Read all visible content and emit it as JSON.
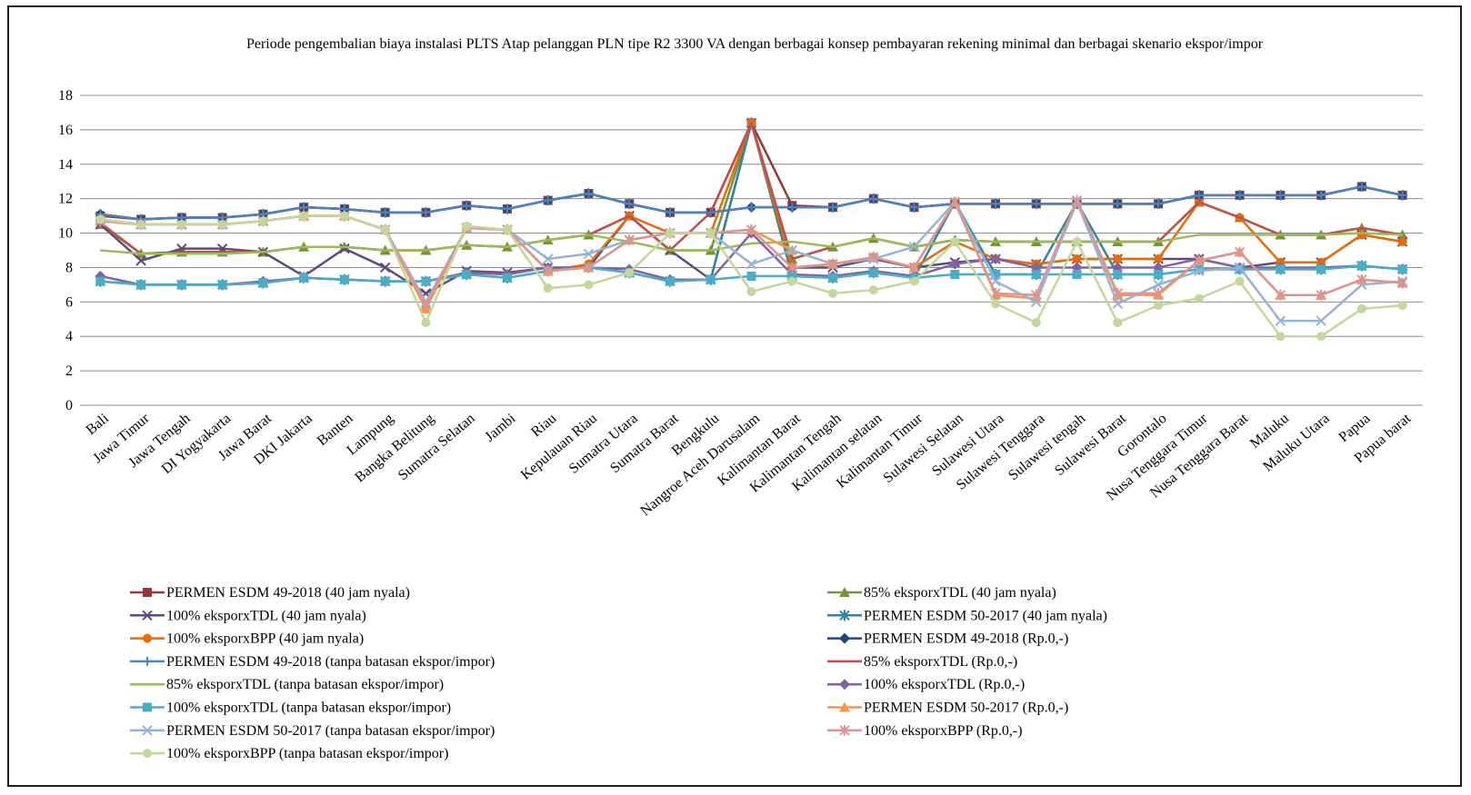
{
  "chart_data": {
    "type": "line",
    "title": "Periode pengembalian biaya instalasi PLTS Atap pelanggan PLN tipe R2 3300 VA dengan berbagai konsep pembayaran rekening minimal dan berbagai skenario ekspor/impor",
    "categories": [
      "Bali",
      "Jawa Timur",
      "Jawa Tengah",
      "DI Yogyakarta",
      "Jawa Barat",
      "DKI Jakarta",
      "Banten",
      "Lampung",
      "Bangka Belitung",
      "Sumatra Selatan",
      "Jambi",
      "Riau",
      "Kepulauan Riau",
      "Sumatra Utara",
      "Sumatra Barat",
      "Bengkulu",
      "Nangroe Aceh Darusalam",
      "Kalimantan Barat",
      "Kalimantan Tengah",
      "Kalimantan selatan",
      "Kalimantan Timur",
      "Sulawesi Selatan",
      "Sulawesi Utara",
      "Sulawesi Tenggara",
      "Sulawesi tengah",
      "Sulawesi Barat",
      "Gorontalo",
      "Nusa Tenggara Timur",
      "Nusa Tenggara Barat",
      "Maluku",
      "Maluku Utara",
      "Papua",
      "Papua barat"
    ],
    "ylim": [
      0,
      18
    ],
    "yticks": [
      0,
      2,
      4,
      6,
      8,
      10,
      12,
      14,
      16,
      18
    ],
    "grid": true,
    "series": [
      {
        "name": "PERMEN ESDM 49-2018 (40 jam nyala)",
        "color": "#953735",
        "marker": "square",
        "values": [
          11.0,
          10.8,
          10.9,
          10.9,
          11.1,
          11.5,
          11.4,
          11.2,
          11.2,
          11.6,
          11.4,
          11.9,
          12.3,
          11.7,
          11.2,
          11.2,
          16.4,
          11.6,
          11.5,
          12.0,
          11.5,
          11.7,
          11.7,
          11.7,
          11.7,
          11.7,
          11.7,
          12.2,
          12.2,
          12.2,
          12.2,
          12.7,
          12.2
        ]
      },
      {
        "name": "85% eksporxTDL (40 jam nyala)",
        "color": "#77933c",
        "marker": "triangle",
        "values": [
          10.5,
          8.8,
          8.9,
          8.9,
          8.9,
          9.2,
          9.2,
          9.0,
          9.0,
          9.3,
          9.2,
          9.6,
          9.9,
          11.0,
          9.0,
          9.0,
          16.4,
          8.5,
          9.2,
          9.7,
          9.2,
          9.6,
          9.5,
          9.5,
          9.5,
          9.5,
          9.5,
          11.8,
          10.9,
          9.9,
          9.9,
          10.3,
          9.9
        ]
      },
      {
        "name": "100% eksporxTDL (40 jam nyala)",
        "color": "#604a7b",
        "marker": "x",
        "values": [
          10.5,
          8.4,
          9.1,
          9.1,
          8.9,
          7.5,
          9.1,
          8.0,
          6.5,
          7.8,
          7.7,
          8.0,
          8.0,
          11.0,
          9.0,
          7.3,
          16.4,
          8.0,
          8.0,
          8.5,
          8.0,
          8.3,
          8.5,
          8.2,
          8.5,
          8.5,
          8.5,
          8.5,
          8.0,
          8.3,
          8.3,
          9.9,
          9.5
        ]
      },
      {
        "name": "PERMEN ESDM 50-2017 (40 jam nyala)",
        "color": "#31859c",
        "marker": "star",
        "values": [
          7.2,
          7.0,
          7.0,
          7.0,
          7.1,
          7.4,
          7.3,
          7.2,
          7.2,
          7.6,
          7.4,
          7.8,
          8.0,
          7.7,
          7.2,
          7.3,
          16.4,
          7.5,
          7.4,
          7.7,
          7.4,
          11.8,
          7.6,
          7.6,
          11.8,
          7.6,
          7.6,
          7.9,
          7.9,
          7.9,
          7.9,
          8.1,
          7.9
        ]
      },
      {
        "name": "100% eksporxBPP (40 jam nyala)",
        "color": "#e46c0a",
        "marker": "circle",
        "values": [
          10.8,
          10.5,
          10.5,
          10.5,
          10.7,
          11.0,
          11.0,
          10.2,
          5.6,
          10.3,
          10.2,
          7.8,
          8.2,
          11.0,
          10.0,
          10.0,
          16.4,
          8.0,
          8.2,
          8.6,
          8.0,
          9.5,
          8.5,
          8.2,
          8.5,
          8.5,
          8.5,
          11.8,
          10.9,
          8.3,
          8.3,
          9.9,
          9.5
        ]
      },
      {
        "name": "PERMEN ESDM 49-2018 (Rp.0,-)",
        "color": "#1f497d",
        "marker": "diamond",
        "values": [
          11.1,
          10.8,
          10.9,
          10.9,
          11.1,
          11.5,
          11.4,
          11.2,
          11.2,
          11.6,
          11.4,
          11.9,
          12.3,
          11.7,
          11.2,
          11.2,
          11.5,
          11.5,
          11.5,
          12.0,
          11.5,
          11.7,
          11.7,
          11.7,
          11.7,
          11.7,
          11.7,
          12.2,
          12.2,
          12.2,
          12.2,
          12.7,
          12.2
        ]
      },
      {
        "name": "PERMEN ESDM 49-2018 (tanpa batasan ekspor/impor)",
        "color": "#4f81bd",
        "marker": "plus",
        "values": [
          11.1,
          10.8,
          10.9,
          10.9,
          11.1,
          11.5,
          11.4,
          11.2,
          11.2,
          11.6,
          11.4,
          11.9,
          12.3,
          11.7,
          11.2,
          11.2,
          11.5,
          11.5,
          11.5,
          12.0,
          11.5,
          11.7,
          11.7,
          11.7,
          11.7,
          11.7,
          11.7,
          12.2,
          12.2,
          12.2,
          12.2,
          12.7,
          12.2
        ]
      },
      {
        "name": "85% eksporxTDL (Rp.0,-)",
        "color": "#c0504d",
        "marker": "none",
        "values": [
          10.6,
          8.8,
          8.9,
          8.9,
          8.9,
          9.2,
          9.2,
          9.0,
          9.0,
          9.3,
          9.2,
          9.6,
          9.9,
          11.0,
          9.0,
          11.2,
          16.4,
          8.5,
          9.2,
          9.7,
          9.2,
          9.6,
          9.5,
          9.5,
          9.5,
          9.5,
          9.5,
          11.8,
          10.9,
          9.9,
          9.9,
          10.3,
          9.9
        ]
      },
      {
        "name": "85% eksporxTDL (tanpa batasan ekspor/impor)",
        "color": "#9bbb59",
        "marker": "none",
        "values": [
          9.0,
          8.8,
          8.8,
          8.8,
          8.9,
          9.2,
          9.2,
          9.0,
          9.0,
          9.3,
          9.2,
          9.6,
          9.9,
          9.5,
          9.0,
          9.0,
          9.4,
          9.5,
          9.2,
          9.7,
          9.2,
          9.6,
          9.5,
          9.5,
          9.5,
          9.5,
          9.5,
          9.9,
          9.9,
          9.9,
          9.9,
          10.0,
          9.9
        ]
      },
      {
        "name": "100% eksporxTDL (Rp.0,-)",
        "color": "#8064a2",
        "marker": "diamond",
        "values": [
          7.5,
          7.0,
          7.0,
          7.0,
          7.2,
          7.4,
          7.3,
          7.2,
          7.2,
          7.7,
          7.6,
          8.0,
          8.0,
          7.9,
          7.3,
          7.3,
          10.0,
          7.6,
          7.5,
          7.8,
          7.5,
          8.2,
          8.5,
          8.0,
          8.0,
          8.0,
          8.0,
          8.5,
          8.0,
          8.0,
          8.0,
          8.1,
          7.9
        ]
      },
      {
        "name": "100% eksporxTDL (tanpa batasan ekspor/impor)",
        "color": "#4bacc6",
        "marker": "square",
        "values": [
          7.2,
          7.0,
          7.0,
          7.0,
          7.1,
          7.4,
          7.3,
          7.2,
          7.2,
          7.6,
          7.4,
          7.8,
          8.0,
          7.7,
          7.2,
          7.3,
          7.5,
          7.5,
          7.4,
          7.7,
          7.4,
          7.6,
          7.6,
          7.6,
          7.6,
          7.6,
          7.6,
          7.9,
          7.9,
          7.9,
          7.9,
          8.1,
          7.9
        ]
      },
      {
        "name": "PERMEN ESDM 50-2017 (Rp.0,-)",
        "color": "#f79646",
        "marker": "triangle",
        "values": [
          10.8,
          10.5,
          10.5,
          10.5,
          10.7,
          11.0,
          11.0,
          10.2,
          5.6,
          10.3,
          10.2,
          7.8,
          8.0,
          9.6,
          10.0,
          10.0,
          10.2,
          9.0,
          8.2,
          8.6,
          8.0,
          11.8,
          6.4,
          6.2,
          11.8,
          6.4,
          6.4,
          8.4,
          8.9,
          6.4,
          6.4,
          7.3,
          7.1
        ]
      },
      {
        "name": "PERMEN ESDM 50-2017 (tanpa batasan ekspor/impor)",
        "color": "#95b3d7",
        "marker": "x",
        "values": [
          10.7,
          10.5,
          10.5,
          10.5,
          10.7,
          11.0,
          11.0,
          10.2,
          6.0,
          10.3,
          10.2,
          8.5,
          8.8,
          9.6,
          10.0,
          10.0,
          8.2,
          9.0,
          8.2,
          8.5,
          9.2,
          11.8,
          7.2,
          6.0,
          11.8,
          5.9,
          7.0,
          7.8,
          8.0,
          4.9,
          4.9,
          7.0,
          7.2
        ]
      },
      {
        "name": "100% eksporxBPP (Rp.0,-)",
        "color": "#d99694",
        "marker": "star",
        "values": [
          10.7,
          10.5,
          10.5,
          10.5,
          10.7,
          11.0,
          11.0,
          10.2,
          5.8,
          10.3,
          10.2,
          7.8,
          8.0,
          9.6,
          10.0,
          10.0,
          10.2,
          8.0,
          8.2,
          8.6,
          8.0,
          11.8,
          6.5,
          6.4,
          11.9,
          6.5,
          6.5,
          8.4,
          8.9,
          6.4,
          6.4,
          7.3,
          7.1
        ]
      },
      {
        "name": "100% eksporxBPP (tanpa batasan ekspor/impor)",
        "color": "#c3d69b",
        "marker": "circle",
        "values": [
          10.8,
          10.5,
          10.5,
          10.5,
          10.7,
          11.0,
          11.0,
          10.2,
          4.8,
          10.4,
          10.2,
          6.8,
          7.0,
          7.7,
          10.0,
          10.0,
          6.6,
          7.2,
          6.5,
          6.7,
          7.2,
          9.5,
          5.9,
          4.8,
          9.5,
          4.8,
          5.8,
          6.2,
          7.2,
          4.0,
          4.0,
          5.6,
          5.8
        ]
      }
    ]
  }
}
